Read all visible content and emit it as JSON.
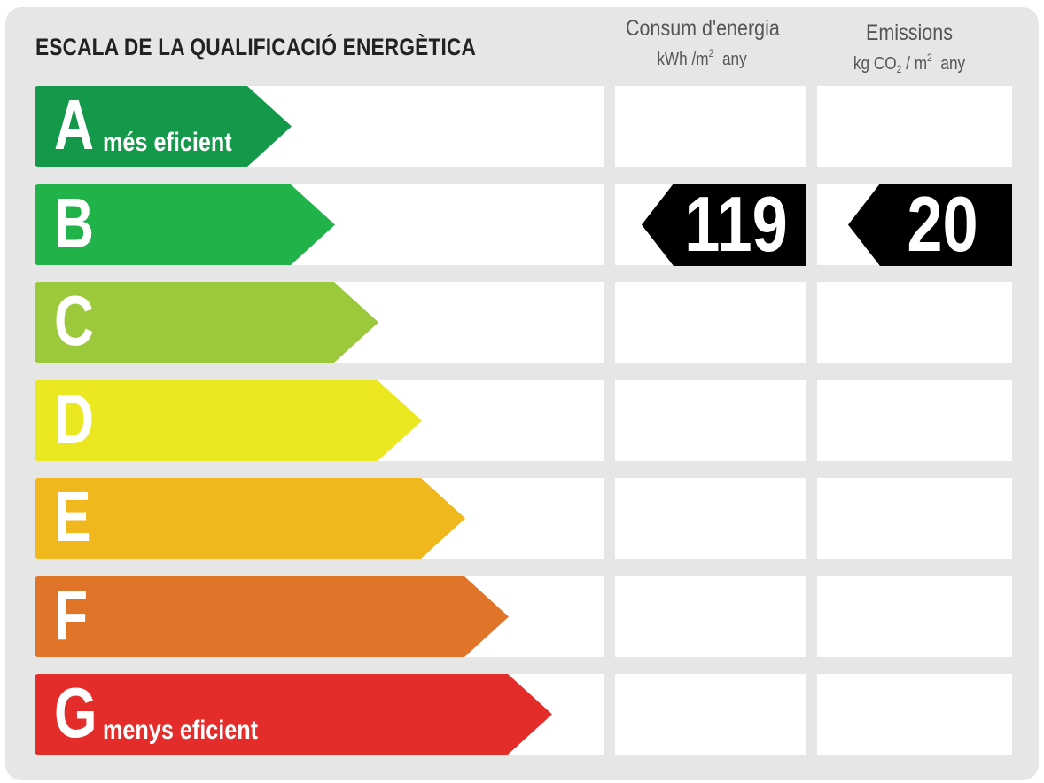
{
  "chart_data": {
    "type": "table",
    "title": "ESCALA DE LA QUALIFICACIÓ ENERGÈTICA",
    "columns": [
      {
        "key": "consumption",
        "header": "Consum d'energia",
        "unit_prefix": "kWh /m",
        "unit_sup": "2",
        "unit_suffix": "any"
      },
      {
        "key": "emissions",
        "header": "Emissions",
        "unit_prefix": "kg CO",
        "unit_sub": "2",
        "unit_mid": " / m",
        "unit_sup": "2",
        "unit_suffix": "any"
      }
    ],
    "bands": [
      {
        "letter": "A",
        "label": "més eficient",
        "color": "#14994a"
      },
      {
        "letter": "B",
        "label": "",
        "color": "#22b24a"
      },
      {
        "letter": "C",
        "label": "",
        "color": "#9cc83c"
      },
      {
        "letter": "D",
        "label": "",
        "color": "#ebe822"
      },
      {
        "letter": "E",
        "label": "",
        "color": "#f1b81d"
      },
      {
        "letter": "F",
        "label": "",
        "color": "#e07429"
      },
      {
        "letter": "G",
        "label": "menys eficient",
        "color": "#e42c2a"
      }
    ],
    "ratings": {
      "consumption": {
        "band": "B",
        "value": "119"
      },
      "emissions": {
        "band": "B",
        "value": "20"
      }
    },
    "marker_color": "#000000"
  }
}
